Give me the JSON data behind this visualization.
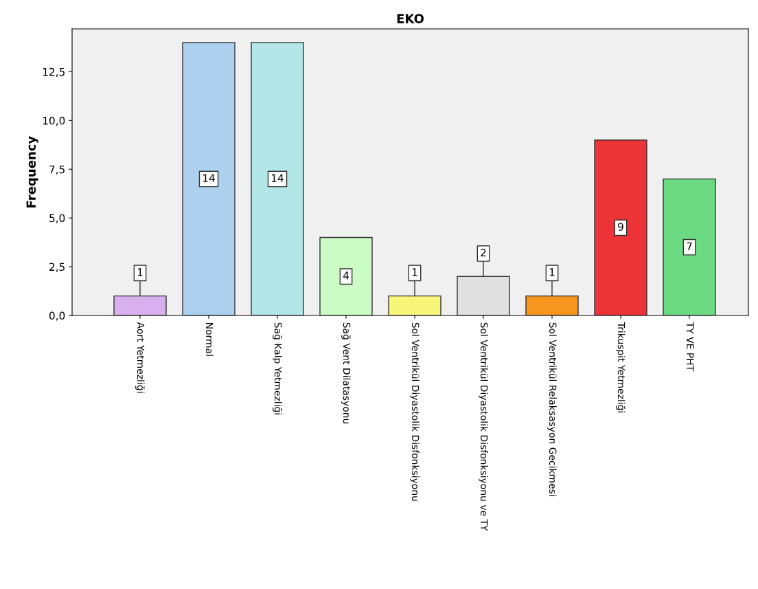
{
  "chart_data": {
    "type": "bar",
    "title": "EKO",
    "ylabel": "Frequency",
    "categories": [
      "Aort Yetmezliği",
      "Normal",
      "Sağ Kalp Yetmezliği",
      "Sağ Vent Dilatasyonu",
      "Sol Ventrikül Diyastolik Disfonksiyonu",
      "Sol Ventrikül Diyastolik Disfonksiyonu ve TY",
      "Sol Ventrikül Relaksasyon Gecikmesi",
      "Trikuspit Yetmezliği",
      "TY VE PHT"
    ],
    "values": [
      1,
      14,
      14,
      4,
      1,
      2,
      1,
      9,
      7
    ],
    "colors": [
      "#d8b0ee",
      "#acd0ee",
      "#b3e6e6",
      "#ccfbc6",
      "#f8f67a",
      "#e0e0e0",
      "#f7961e",
      "#ec3338",
      "#6cda82"
    ],
    "ylim": [
      0,
      14.7
    ],
    "yticks": [
      {
        "value": 0,
        "label": "0,0"
      },
      {
        "value": 2.5,
        "label": "2,5"
      },
      {
        "value": 5,
        "label": "5,0"
      },
      {
        "value": 7.5,
        "label": "7,5"
      },
      {
        "value": 10,
        "label": "10,0"
      },
      {
        "value": 12.5,
        "label": "12,5"
      }
    ],
    "data_labels": true,
    "grid": false,
    "legend": false
  }
}
